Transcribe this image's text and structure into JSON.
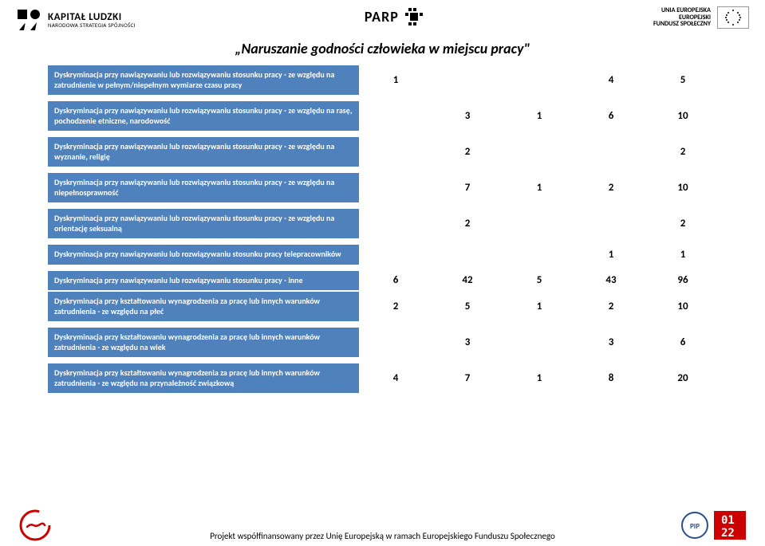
{
  "header": {
    "left": {
      "line1": "KAPITAŁ LUDZKI",
      "line2": "NARODOWA STRATEGIA SPÓJNOŚCI"
    },
    "center": {
      "text": "PARP"
    },
    "right": {
      "line1": "UNIA EUROPEJSKA",
      "line2": "EUROPEJSKI",
      "line3": "FUNDUSZ SPOŁECZNY"
    }
  },
  "title": "„Naruszanie godności człowieka w miejscu pracy\"",
  "colors": {
    "header_bg": "#4f81bd",
    "header_text": "#ffffff",
    "cell_text": "#000000",
    "red": "#cc0000"
  },
  "table": {
    "columns": 5,
    "rows": [
      {
        "label": "Dyskryminacja przy nawiązywaniu lub rozwiązywaniu stosunku pracy - ze względu na zatrudnienie w pełnym/niepełnym wymiarze czasu pracy",
        "values": [
          "1",
          "",
          "",
          "4",
          "5"
        ]
      },
      {
        "label": "Dyskryminacja przy nawiązywaniu lub rozwiązywaniu stosunku pracy - ze względu na rasę, pochodzenie etniczne, narodowość",
        "values": [
          "",
          "3",
          "1",
          "6",
          "10"
        ]
      },
      {
        "label": "Dyskryminacja przy nawiązywaniu lub rozwiązywaniu stosunku pracy - ze względu na wyznanie, religię",
        "values": [
          "",
          "2",
          "",
          "",
          "2"
        ]
      },
      {
        "label": "Dyskryminacja przy nawiązywaniu lub rozwiązywaniu stosunku pracy - ze względu na niepełnosprawność",
        "values": [
          "",
          "7",
          "1",
          "2",
          "10"
        ]
      },
      {
        "label": "Dyskryminacja przy nawiązywaniu lub rozwiązywaniu stosunku pracy - ze względu na orientację seksualną",
        "values": [
          "",
          "2",
          "",
          "",
          "2"
        ]
      },
      {
        "label": "Dyskryminacja przy nawiązywaniu lub rozwiązywaniu stosunku pracy telepracowników",
        "values": [
          "",
          "",
          "",
          "1",
          "1"
        ]
      },
      {
        "label": "Dyskryminacja przy nawiązywaniu lub rozwiązywaniu stosunku pracy - inne",
        "values": [
          "6",
          "42",
          "5",
          "43",
          "96"
        ]
      },
      {
        "label": "Dyskryminacja przy kształtowaniu wynagrodzenia za pracę lub innych warunków zatrudnienia - ze względu na płeć",
        "values": [
          "2",
          "5",
          "1",
          "2",
          "10"
        ]
      },
      {
        "label": "Dyskryminacja przy kształtowaniu wynagrodzenia za pracę lub innych warunków zatrudnienia - ze względu na wiek",
        "values": [
          "",
          "3",
          "",
          "3",
          "6"
        ]
      },
      {
        "label": "Dyskryminacja przy kształtowaniu wynagrodzenia za pracę lub innych warunków zatrudnienia - ze względu na przynależność związkową",
        "values": [
          "4",
          "7",
          "1",
          "8",
          "20"
        ]
      }
    ],
    "spacer_after": [
      0,
      1,
      2,
      3,
      4,
      5,
      7,
      8
    ]
  },
  "footer": {
    "text": "Projekt współfinansowany przez Unię Europejską w ramach Europejskiego Funduszu Społecznego"
  }
}
